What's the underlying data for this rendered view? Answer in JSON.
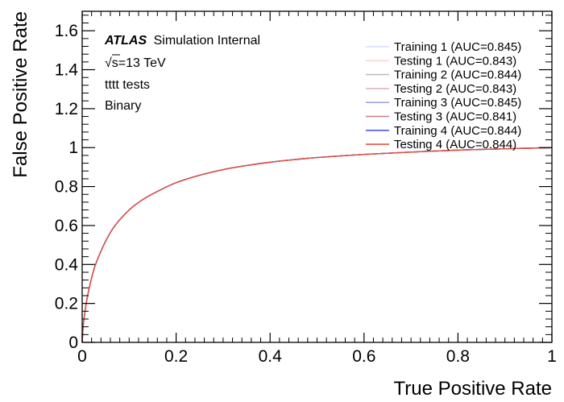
{
  "chart_data": {
    "type": "line",
    "xlabel": "True Positive Rate",
    "ylabel": "False Positive Rate",
    "xlim": [
      0,
      1
    ],
    "ylim": [
      0,
      1.7
    ],
    "x_ticks": [
      0,
      0.2,
      0.4,
      0.6,
      0.8,
      1
    ],
    "x_tick_labels": [
      "0",
      "0.2",
      "0.4",
      "0.6",
      "0.8",
      "1"
    ],
    "y_ticks": [
      0,
      0.2,
      0.4,
      0.6,
      0.8,
      1,
      1.2,
      1.4,
      1.6
    ],
    "y_tick_labels": [
      "0",
      "0.2",
      "0.4",
      "0.6",
      "0.8",
      "1",
      "1.2",
      "1.4",
      "1.6"
    ],
    "grid": false,
    "legend_position": "top-right",
    "annotations": {
      "experiment": "ATLAS",
      "experiment_suffix": "Simulation Internal",
      "energy_sqrt": "√",
      "energy_text": "s=13 TeV",
      "line3": "tttt tests",
      "line4": "Binary"
    },
    "x": [
      0,
      0.002,
      0.005,
      0.01,
      0.02,
      0.03,
      0.05,
      0.07,
      0.1,
      0.13,
      0.16,
      0.2,
      0.25,
      0.3,
      0.35,
      0.4,
      0.45,
      0.5,
      0.6,
      0.7,
      0.8,
      0.9,
      1.0
    ],
    "series": [
      {
        "name": "Training 1 (AUC=0.845)",
        "color": "#d9ddfa",
        "values": [
          0,
          0.08,
          0.14,
          0.22,
          0.33,
          0.41,
          0.52,
          0.6,
          0.68,
          0.735,
          0.775,
          0.82,
          0.858,
          0.887,
          0.908,
          0.925,
          0.938,
          0.949,
          0.965,
          0.977,
          0.987,
          0.994,
          1.0
        ]
      },
      {
        "name": "Testing 1 (AUC=0.843)",
        "color": "#f6d6cf",
        "values": [
          0,
          0.08,
          0.14,
          0.22,
          0.33,
          0.41,
          0.52,
          0.6,
          0.68,
          0.735,
          0.775,
          0.82,
          0.858,
          0.887,
          0.908,
          0.925,
          0.938,
          0.949,
          0.965,
          0.977,
          0.987,
          0.994,
          1.0
        ]
      },
      {
        "name": "Training 2 (AUC=0.844)",
        "color": "#bdbdc6",
        "values": [
          0,
          0.08,
          0.14,
          0.22,
          0.33,
          0.41,
          0.52,
          0.6,
          0.68,
          0.735,
          0.775,
          0.82,
          0.858,
          0.887,
          0.908,
          0.925,
          0.938,
          0.949,
          0.965,
          0.977,
          0.987,
          0.994,
          1.0
        ]
      },
      {
        "name": "Testing 2 (AUC=0.843)",
        "color": "#ddb7bd",
        "values": [
          0,
          0.08,
          0.14,
          0.22,
          0.33,
          0.41,
          0.52,
          0.6,
          0.68,
          0.735,
          0.775,
          0.82,
          0.858,
          0.887,
          0.908,
          0.925,
          0.938,
          0.949,
          0.965,
          0.977,
          0.987,
          0.994,
          1.0
        ]
      },
      {
        "name": "Training 3 (AUC=0.845)",
        "color": "#9da3ea",
        "values": [
          0,
          0.08,
          0.14,
          0.22,
          0.33,
          0.41,
          0.52,
          0.6,
          0.68,
          0.735,
          0.775,
          0.82,
          0.858,
          0.887,
          0.908,
          0.925,
          0.938,
          0.949,
          0.965,
          0.977,
          0.987,
          0.994,
          1.0
        ]
      },
      {
        "name": "Testing 3 (AUC=0.841)",
        "color": "#c87f86",
        "values": [
          0,
          0.08,
          0.14,
          0.22,
          0.33,
          0.41,
          0.52,
          0.6,
          0.68,
          0.735,
          0.775,
          0.82,
          0.858,
          0.887,
          0.908,
          0.925,
          0.938,
          0.949,
          0.965,
          0.977,
          0.987,
          0.994,
          1.0
        ]
      },
      {
        "name": "Training 4 (AUC=0.844)",
        "color": "#4f58e6",
        "values": [
          0,
          0.08,
          0.14,
          0.22,
          0.33,
          0.41,
          0.52,
          0.6,
          0.68,
          0.735,
          0.775,
          0.82,
          0.858,
          0.887,
          0.908,
          0.925,
          0.938,
          0.949,
          0.965,
          0.977,
          0.987,
          0.994,
          1.0
        ]
      },
      {
        "name": "Testing 4 (AUC=0.844)",
        "color": "#e5513e",
        "values": [
          0,
          0.08,
          0.14,
          0.22,
          0.33,
          0.41,
          0.52,
          0.6,
          0.68,
          0.735,
          0.775,
          0.82,
          0.858,
          0.887,
          0.908,
          0.925,
          0.938,
          0.949,
          0.965,
          0.977,
          0.987,
          0.994,
          1.0
        ]
      }
    ]
  }
}
